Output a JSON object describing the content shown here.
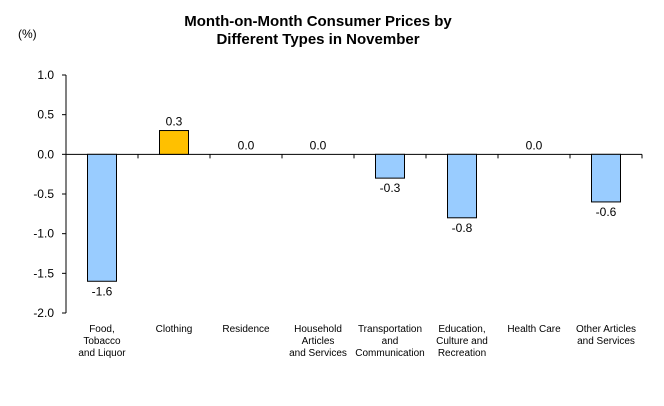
{
  "chart_data": {
    "type": "bar",
    "title_lines": [
      "Month-on-Month Consumer Prices by",
      "Different Types in November"
    ],
    "unit_label": "(%)",
    "categories": [
      [
        "Food,",
        "Tobacco",
        "and Liquor"
      ],
      [
        "Clothing"
      ],
      [
        "Residence"
      ],
      [
        "Household",
        "Articles",
        "and Services"
      ],
      [
        "Transportation",
        "and",
        "Communication"
      ],
      [
        "Education,",
        "Culture and",
        "Recreation"
      ],
      [
        "Health Care"
      ],
      [
        "Other Articles",
        "and Services"
      ]
    ],
    "values": [
      -1.6,
      0.3,
      0.0,
      0.0,
      -0.3,
      -0.8,
      0.0,
      -0.6
    ],
    "value_labels": [
      "-1.6",
      "0.3",
      "0.0",
      "0.0",
      "-0.3",
      "-0.8",
      "0.0",
      "-0.6"
    ],
    "ylim": [
      -2.0,
      1.0
    ],
    "yticks": [
      "1.0",
      "0.5",
      "0.0",
      "-0.5",
      "-1.0",
      "-1.5",
      "-2.0"
    ],
    "colors": {
      "negative": "#99ccff",
      "positive": "#ffc000",
      "border": "#000000"
    },
    "grid": false,
    "legend": "none"
  }
}
